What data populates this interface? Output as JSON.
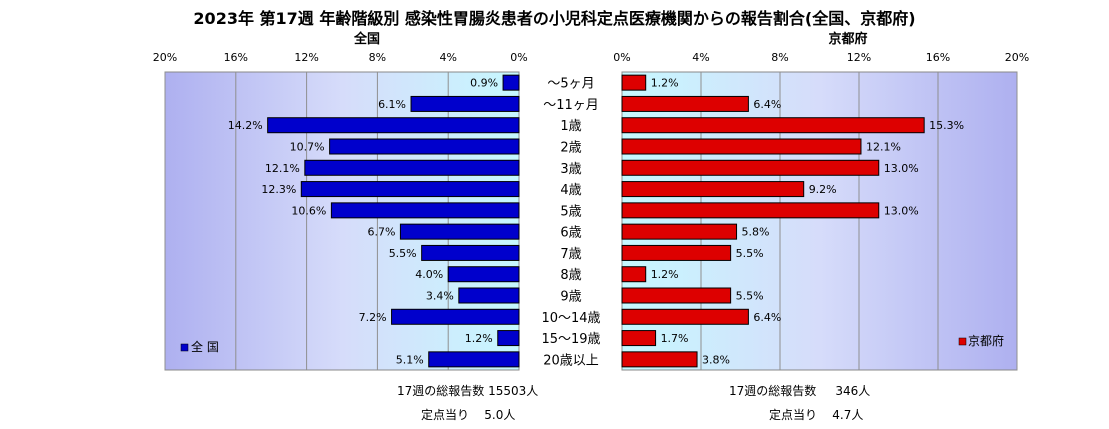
{
  "title": "2023年 第17週  年齢階級別 感染性胃腸炎患者の小児科定点医療機関からの報告割合(全国、京都府)",
  "chart_data": {
    "type": "bar",
    "categories": [
      "～5ヶ月",
      "～11ヶ月",
      "1歳",
      "2歳",
      "3歳",
      "4歳",
      "5歳",
      "6歳",
      "7歳",
      "8歳",
      "9歳",
      "10～14歳",
      "15～19歳",
      "20歳以上"
    ],
    "left_panel": {
      "label": "全国",
      "legend": "全 国",
      "color": "#0000cc",
      "values": [
        0.9,
        6.1,
        14.2,
        10.7,
        12.1,
        12.3,
        10.6,
        6.7,
        5.5,
        4.0,
        3.4,
        7.2,
        1.2,
        5.1
      ],
      "value_labels": [
        "0.9%",
        "6.1%",
        "14.2%",
        "10.7%",
        "12.1%",
        "12.3%",
        "10.6%",
        "6.7%",
        "5.5%",
        "4.0%",
        "3.4%",
        "7.2%",
        "1.2%",
        "5.1%"
      ],
      "ticks": [
        "20%",
        "16%",
        "12%",
        "8%",
        "4%",
        "0%"
      ],
      "xlim": [
        20,
        0
      ]
    },
    "right_panel": {
      "label": "京都府",
      "legend": "京都府",
      "color": "#dd0000",
      "values": [
        1.2,
        6.4,
        15.3,
        12.1,
        13.0,
        9.2,
        13.0,
        5.8,
        5.5,
        1.2,
        5.5,
        6.4,
        1.7,
        3.8
      ],
      "value_labels": [
        "1.2%",
        "6.4%",
        "15.3%",
        "12.1%",
        "13.0%",
        "9.2%",
        "13.0%",
        "5.8%",
        "5.5%",
        "1.2%",
        "5.5%",
        "6.4%",
        "1.7%",
        "3.8%"
      ],
      "ticks": [
        "0%",
        "4%",
        "8%",
        "12%",
        "16%",
        "20%"
      ],
      "xlim": [
        0,
        20
      ]
    }
  },
  "footer": {
    "national_total": "17週の総報告数 15503人",
    "national_per_site": "定点当り    5.0人",
    "kyoto_total": "17週の総報告数     346人",
    "kyoto_per_site": "定点当り    4.7人"
  }
}
